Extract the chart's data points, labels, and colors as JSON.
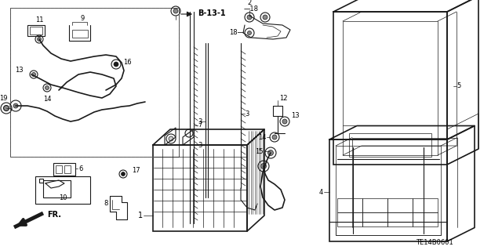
{
  "bg_color": "#ffffff",
  "line_color": "#1a1a1a",
  "diagram_code": "TE14B0601",
  "fig_width": 6.4,
  "fig_height": 3.19,
  "dpi": 100
}
